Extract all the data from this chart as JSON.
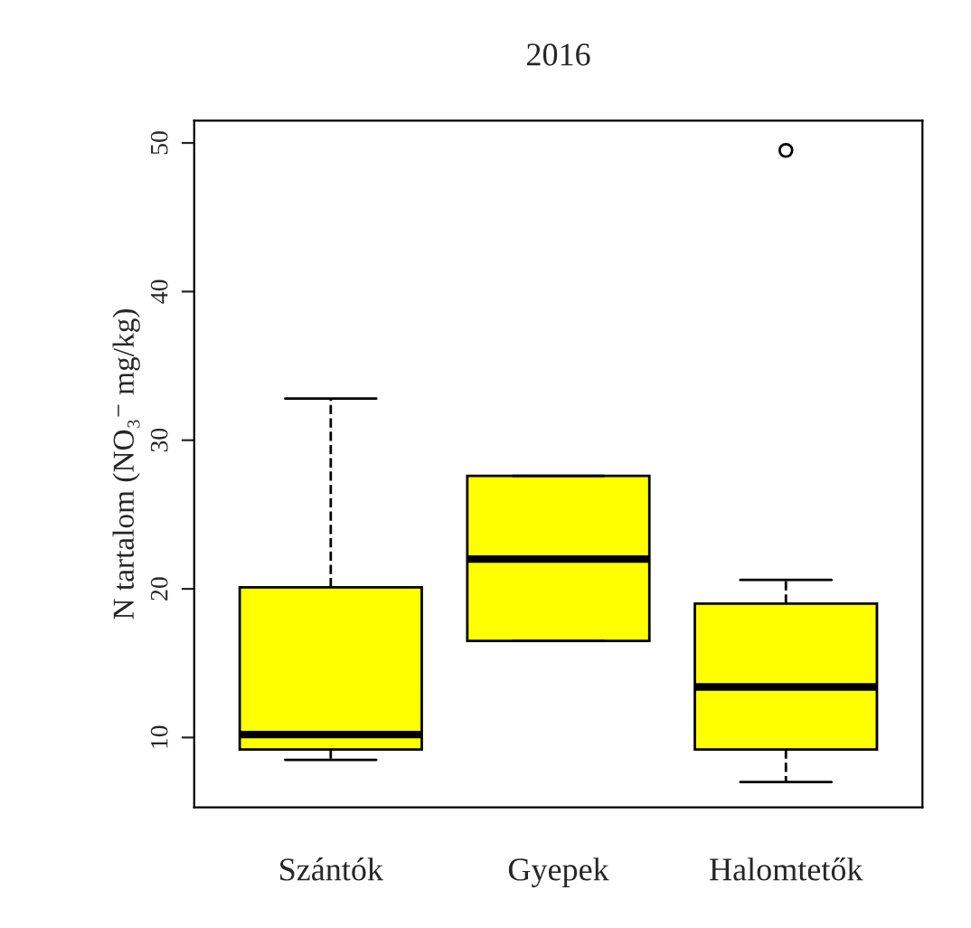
{
  "chart_data": {
    "type": "box",
    "title": "2016",
    "ylabel": "N tartalom (NO₃⁻ mg/kg)",
    "categories": [
      "Szántók",
      "Gyepek",
      "Halomtetők"
    ],
    "color": "#ffff00",
    "boxes": [
      {
        "low": 8.5,
        "q1": 9.2,
        "median": 10.2,
        "q3": 20.1,
        "high": 32.8
      },
      {
        "low": 16.5,
        "q1": 16.5,
        "median": 22,
        "q3": 27.6,
        "high": 27.6
      },
      {
        "low": 7,
        "q1": 9.2,
        "median": 13.4,
        "q3": 19,
        "high": 20.6,
        "outliers": [
          49.5
        ]
      }
    ],
    "ylim": [
      5.3,
      51.5
    ],
    "yticks": [
      10,
      20,
      30,
      40,
      50
    ],
    "grid": false,
    "line_style": "dashed"
  }
}
